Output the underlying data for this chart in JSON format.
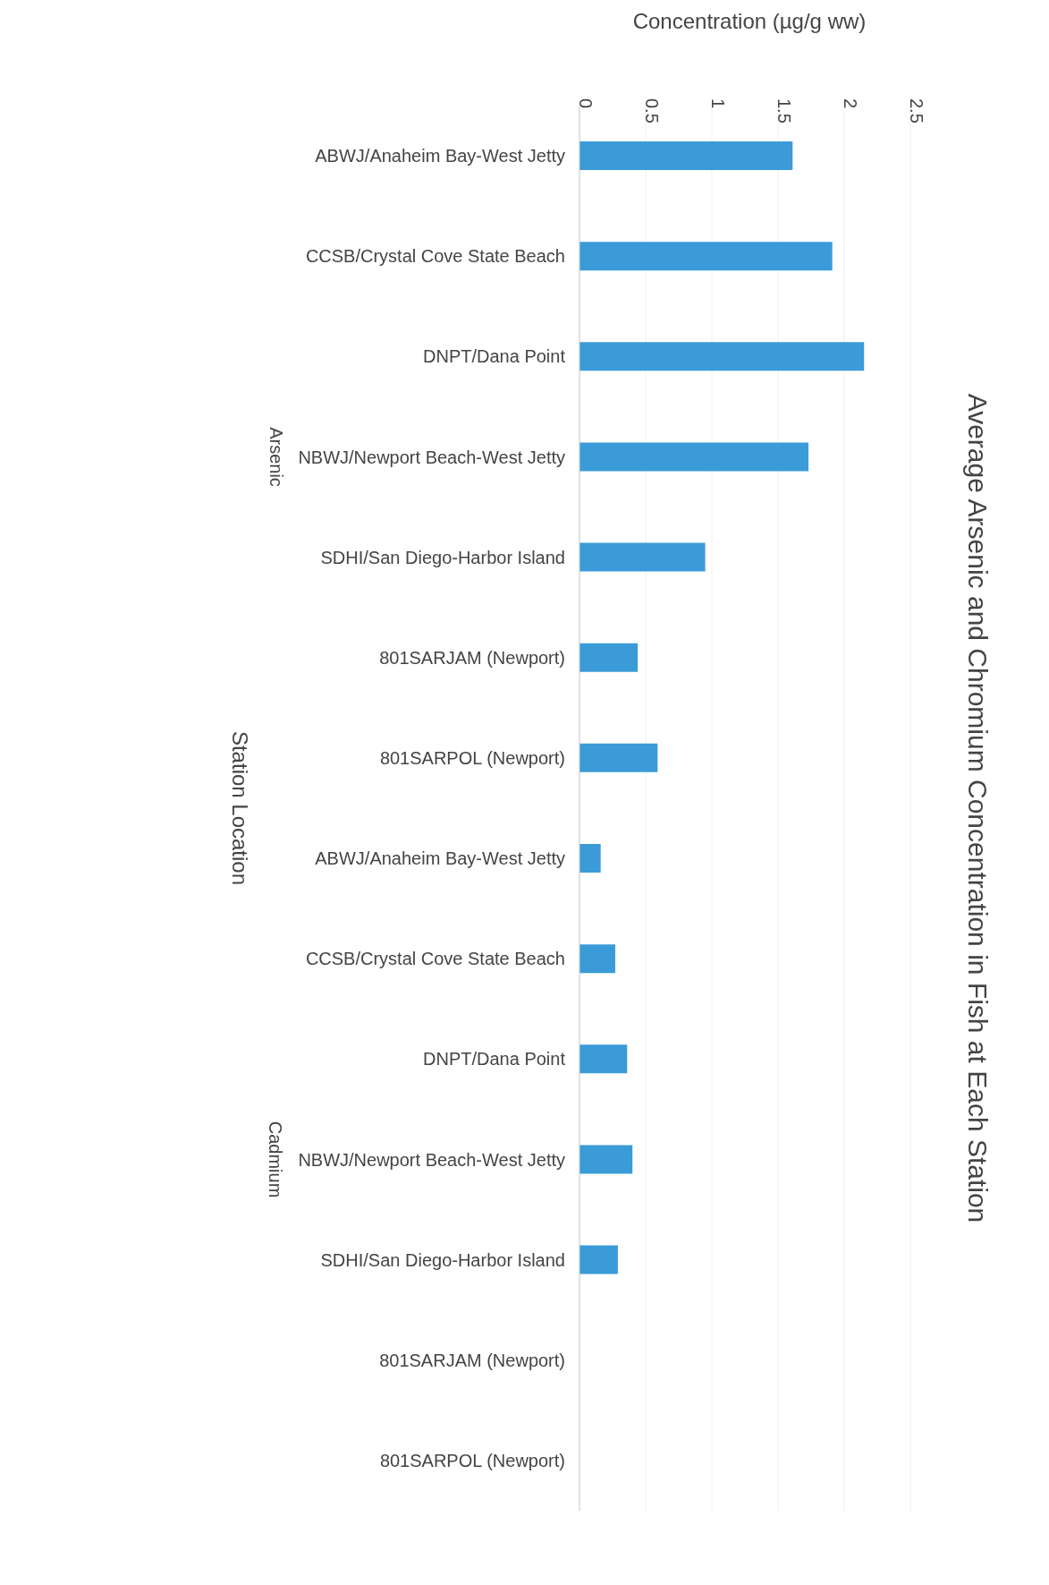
{
  "chart_data": {
    "type": "bar",
    "orientation": "horizontal",
    "title": "Average Arsenic and Chromium Concentration in Fish at Each Station",
    "xlabel": "Concentration (µg/g ww)",
    "ylabel": "Station Location",
    "annotations": [
      "Arsenic",
      "Cadmium"
    ],
    "categories": [
      "ABWJ/Anaheim Bay-West Jetty",
      "CCSB/Crystal Cove State Beach",
      "DNPT/Dana Point",
      "NBWJ/Newport Beach-West Jetty",
      "SDHI/San Diego-Harbor Island",
      "801SARJAM (Newport)",
      "801SARPOL (Newport)",
      "ABWJ/Anaheim Bay-West Jetty",
      "CCSB/Crystal Cove State Beach",
      "DNPT/Dana Point",
      "NBWJ/Newport Beach-West Jetty",
      "SDHI/San Diego-Harbor Island",
      "801SARJAM (Newport)",
      "801SARPOL (Newport)"
    ],
    "values": [
      1.61,
      1.91,
      2.15,
      1.73,
      0.95,
      0.44,
      0.59,
      0.16,
      0.27,
      0.36,
      0.4,
      0.29,
      null,
      null
    ],
    "color": "#3b9bd8",
    "xlim": [
      0,
      2.5
    ],
    "xticks": [
      0,
      0.5,
      1,
      1.5,
      2,
      2.5
    ],
    "grid": "x"
  }
}
